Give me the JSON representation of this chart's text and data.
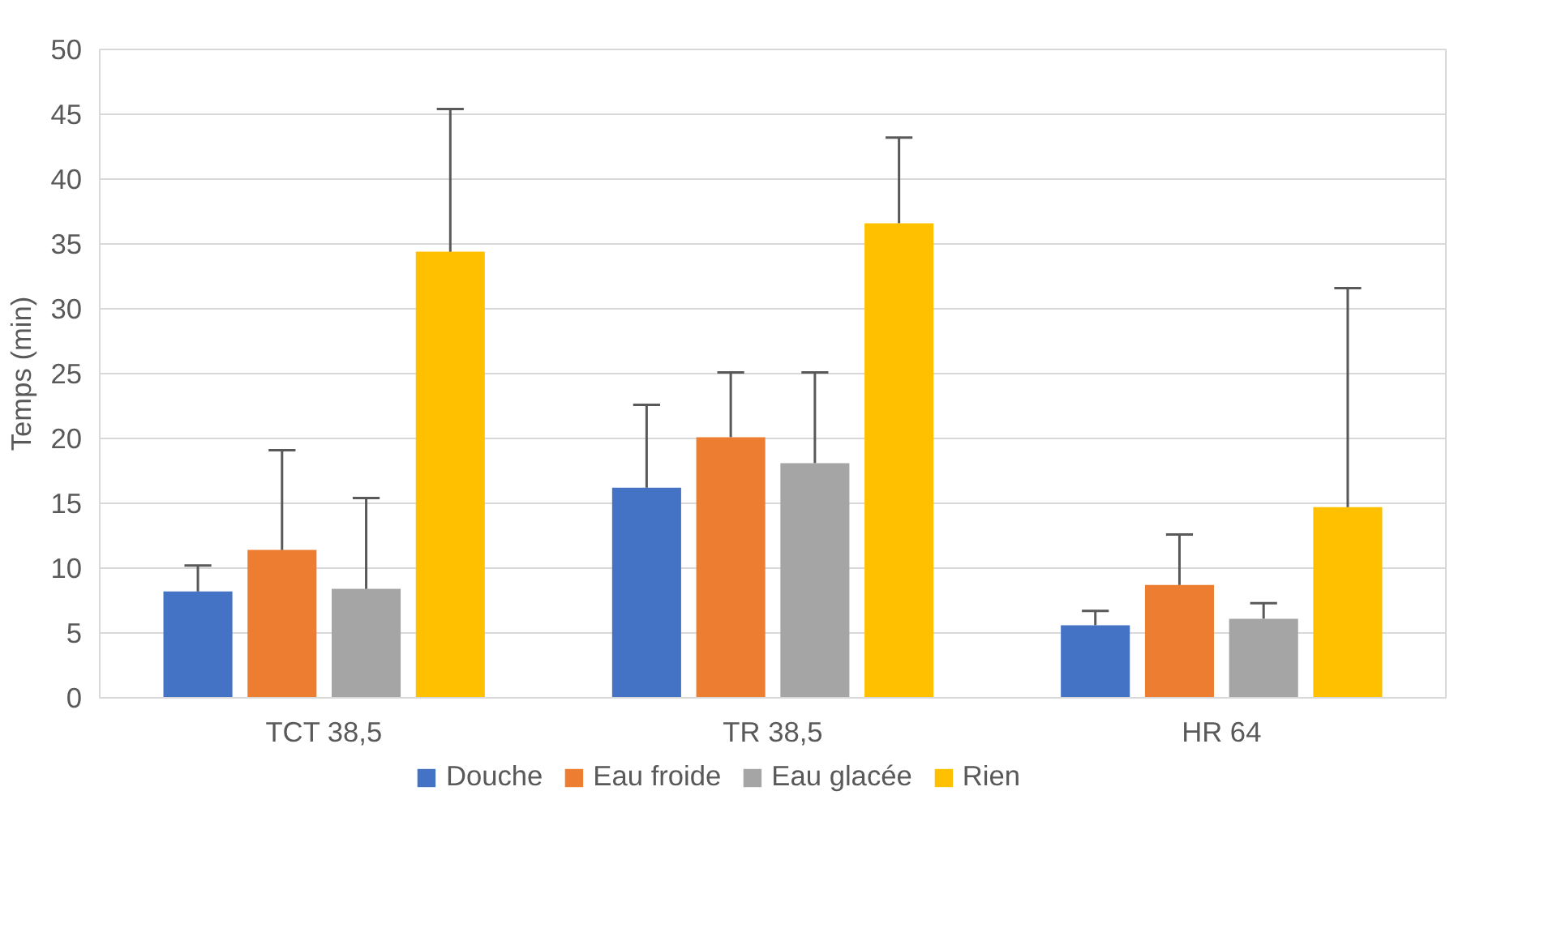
{
  "chart_data": {
    "type": "bar",
    "ylabel": "Temps (min)",
    "categories": [
      "TCT 38,5",
      "TR 38,5",
      "HR 64"
    ],
    "series": [
      {
        "name": "Douche",
        "color": "#4472c4",
        "values": [
          8.2,
          16.2,
          5.6
        ],
        "errors": [
          [
            8.2,
            10.2
          ],
          [
            16.2,
            22.6
          ],
          [
            5.6,
            6.7
          ]
        ]
      },
      {
        "name": "Eau froide",
        "color": "#ed7d31",
        "values": [
          11.4,
          20.1,
          8.7
        ],
        "errors": [
          [
            11.4,
            19.1
          ],
          [
            20.1,
            25.1
          ],
          [
            8.7,
            12.6
          ]
        ]
      },
      {
        "name": "Eau glacée",
        "color": "#a5a5a5",
        "values": [
          8.4,
          18.1,
          6.1
        ],
        "errors": [
          [
            8.4,
            15.4
          ],
          [
            18.1,
            25.1
          ],
          [
            6.1,
            7.3
          ]
        ]
      },
      {
        "name": "Rien",
        "color": "#ffc000",
        "values": [
          34.4,
          36.6,
          14.7
        ],
        "errors": [
          [
            34.4,
            45.4
          ],
          [
            36.6,
            43.2
          ],
          [
            14.7,
            31.6
          ]
        ]
      }
    ],
    "ylim": [
      0,
      50
    ],
    "yticks": [
      0,
      5,
      10,
      15,
      20,
      25,
      30,
      35,
      40,
      45,
      50
    ],
    "grid": "y",
    "legend": "bottom"
  }
}
